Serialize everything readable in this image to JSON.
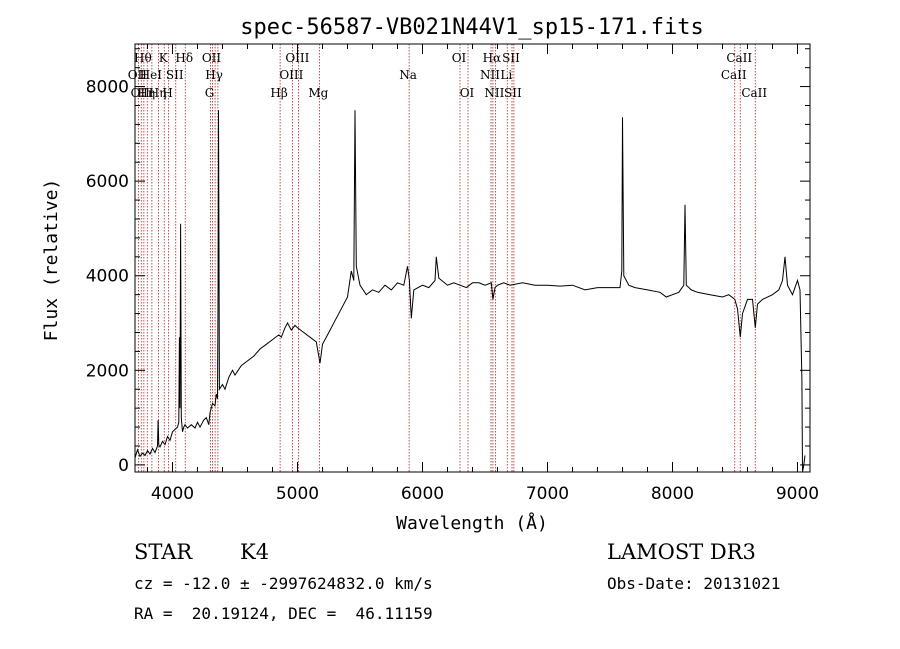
{
  "chart_data": {
    "type": "line",
    "title": "spec-56587-VB021N44V1_sp15-171.fits",
    "xlabel": "Wavelength (Å)",
    "ylabel": "Flux (relative)",
    "xlim": [
      3700,
      9100
    ],
    "ylim": [
      -150,
      8900
    ],
    "x_ticks": [
      4000,
      5000,
      6000,
      7000,
      8000,
      9000
    ],
    "y_ticks": [
      0,
      2000,
      4000,
      6000,
      8000
    ],
    "series": [
      {
        "name": "flux",
        "color": "#000000",
        "points": [
          [
            3700,
            150
          ],
          [
            3720,
            320
          ],
          [
            3740,
            180
          ],
          [
            3760,
            250
          ],
          [
            3780,
            200
          ],
          [
            3800,
            300
          ],
          [
            3820,
            230
          ],
          [
            3840,
            350
          ],
          [
            3860,
            260
          ],
          [
            3880,
            400
          ],
          [
            3885,
            950
          ],
          [
            3890,
            420
          ],
          [
            3900,
            380
          ],
          [
            3920,
            500
          ],
          [
            3940,
            430
          ],
          [
            3960,
            600
          ],
          [
            3980,
            520
          ],
          [
            4000,
            700
          ],
          [
            4020,
            750
          ],
          [
            4040,
            800
          ],
          [
            4050,
            900
          ],
          [
            4055,
            2700
          ],
          [
            4060,
            1200
          ],
          [
            4065,
            5100
          ],
          [
            4070,
            1000
          ],
          [
            4080,
            700
          ],
          [
            4090,
            800
          ],
          [
            4100,
            850
          ],
          [
            4120,
            780
          ],
          [
            4150,
            850
          ],
          [
            4180,
            780
          ],
          [
            4200,
            900
          ],
          [
            4220,
            800
          ],
          [
            4250,
            950
          ],
          [
            4270,
            1000
          ],
          [
            4290,
            850
          ],
          [
            4300,
            1100
          ],
          [
            4320,
            1300
          ],
          [
            4340,
            1250
          ],
          [
            4350,
            1500
          ],
          [
            4360,
            1400
          ],
          [
            4365,
            3800
          ],
          [
            4368,
            7500
          ],
          [
            4372,
            4500
          ],
          [
            4375,
            1600
          ],
          [
            4400,
            1700
          ],
          [
            4420,
            1600
          ],
          [
            4450,
            1850
          ],
          [
            4480,
            2000
          ],
          [
            4500,
            1900
          ],
          [
            4550,
            2100
          ],
          [
            4600,
            2200
          ],
          [
            4650,
            2300
          ],
          [
            4700,
            2450
          ],
          [
            4750,
            2550
          ],
          [
            4800,
            2650
          ],
          [
            4850,
            2750
          ],
          [
            4870,
            2700
          ],
          [
            4900,
            2900
          ],
          [
            4920,
            3000
          ],
          [
            4950,
            2850
          ],
          [
            4980,
            2950
          ],
          [
            5000,
            2900
          ],
          [
            5050,
            2800
          ],
          [
            5100,
            2700
          ],
          [
            5150,
            2600
          ],
          [
            5180,
            2150
          ],
          [
            5200,
            2550
          ],
          [
            5250,
            2800
          ],
          [
            5300,
            3050
          ],
          [
            5350,
            3300
          ],
          [
            5400,
            3550
          ],
          [
            5430,
            4100
          ],
          [
            5450,
            3900
          ],
          [
            5460,
            7500
          ],
          [
            5470,
            4200
          ],
          [
            5500,
            3800
          ],
          [
            5550,
            3600
          ],
          [
            5600,
            3700
          ],
          [
            5650,
            3650
          ],
          [
            5700,
            3800
          ],
          [
            5750,
            3700
          ],
          [
            5800,
            3850
          ],
          [
            5850,
            3800
          ],
          [
            5880,
            4200
          ],
          [
            5895,
            3900
          ],
          [
            5910,
            3100
          ],
          [
            5930,
            3700
          ],
          [
            6000,
            3800
          ],
          [
            6050,
            3750
          ],
          [
            6100,
            3900
          ],
          [
            6110,
            4400
          ],
          [
            6130,
            3950
          ],
          [
            6200,
            3800
          ],
          [
            6250,
            3850
          ],
          [
            6300,
            3800
          ],
          [
            6350,
            3750
          ],
          [
            6400,
            3850
          ],
          [
            6450,
            3850
          ],
          [
            6500,
            3800
          ],
          [
            6550,
            3850
          ],
          [
            6563,
            3500
          ],
          [
            6580,
            3750
          ],
          [
            6600,
            3800
          ],
          [
            6650,
            3850
          ],
          [
            6700,
            3800
          ],
          [
            6800,
            3850
          ],
          [
            6900,
            3800
          ],
          [
            7000,
            3800
          ],
          [
            7100,
            3780
          ],
          [
            7200,
            3800
          ],
          [
            7300,
            3700
          ],
          [
            7400,
            3750
          ],
          [
            7500,
            3750
          ],
          [
            7580,
            3750
          ],
          [
            7594,
            4100
          ],
          [
            7600,
            7350
          ],
          [
            7610,
            4000
          ],
          [
            7650,
            3800
          ],
          [
            7700,
            3750
          ],
          [
            7800,
            3700
          ],
          [
            7900,
            3650
          ],
          [
            7950,
            3550
          ],
          [
            8000,
            3600
          ],
          [
            8050,
            3650
          ],
          [
            8090,
            3800
          ],
          [
            8100,
            5500
          ],
          [
            8110,
            3800
          ],
          [
            8150,
            3700
          ],
          [
            8200,
            3650
          ],
          [
            8300,
            3600
          ],
          [
            8400,
            3550
          ],
          [
            8450,
            3600
          ],
          [
            8498,
            3500
          ],
          [
            8520,
            3300
          ],
          [
            8542,
            2700
          ],
          [
            8560,
            3200
          ],
          [
            8600,
            3500
          ],
          [
            8640,
            3500
          ],
          [
            8662,
            2900
          ],
          [
            8680,
            3400
          ],
          [
            8720,
            3500
          ],
          [
            8800,
            3600
          ],
          [
            8850,
            3700
          ],
          [
            8880,
            3900
          ],
          [
            8900,
            4400
          ],
          [
            8920,
            3800
          ],
          [
            8960,
            3600
          ],
          [
            9000,
            3900
          ],
          [
            9020,
            3700
          ],
          [
            9035,
            1800
          ],
          [
            9040,
            -200
          ],
          [
            9050,
            0
          ],
          [
            9060,
            200
          ]
        ]
      }
    ],
    "line_markers": [
      {
        "wl": 3727,
        "label": "OII",
        "row": 2
      },
      {
        "wl": 3750,
        "label": "OII",
        "row": 3
      },
      {
        "wl": 3771,
        "label": "Hθ",
        "row": 1
      },
      {
        "wl": 3798,
        "label": "Hη",
        "row": 3
      },
      {
        "wl": 3835,
        "label": "HeI",
        "row": 2
      },
      {
        "wl": 3889,
        "label": "Hη",
        "row": 3
      },
      {
        "wl": 3934,
        "label": "K",
        "row": 1
      },
      {
        "wl": 3969,
        "label": "H",
        "row": 3
      },
      {
        "wl": 4026,
        "label": "SII",
        "row": 2
      },
      {
        "wl": 4102,
        "label": "Hδ",
        "row": 1
      },
      {
        "wl": 4304,
        "label": "G",
        "row": 3
      },
      {
        "wl": 4320,
        "label": "OII",
        "row": 1
      },
      {
        "wl": 4341,
        "label": "Hγ",
        "row": 2
      },
      {
        "wl": 4363,
        "label": "",
        "row": 0
      },
      {
        "wl": 4861,
        "label": "Hβ",
        "row": 3
      },
      {
        "wl": 4959,
        "label": "OIII",
        "row": 2
      },
      {
        "wl": 5007,
        "label": "OIII",
        "row": 1
      },
      {
        "wl": 5175,
        "label": "Mg",
        "row": 3
      },
      {
        "wl": 5893,
        "label": "Na",
        "row": 2
      },
      {
        "wl": 6300,
        "label": "OI",
        "row": 1
      },
      {
        "wl": 6364,
        "label": "OI",
        "row": 3
      },
      {
        "wl": 6548,
        "label": "NII",
        "row": 2
      },
      {
        "wl": 6563,
        "label": "Hα",
        "row": 1
      },
      {
        "wl": 6583,
        "label": "NII",
        "row": 3
      },
      {
        "wl": 6678,
        "label": "Li",
        "row": 2
      },
      {
        "wl": 6716,
        "label": "SII",
        "row": 1
      },
      {
        "wl": 6731,
        "label": "SII",
        "row": 3
      },
      {
        "wl": 8498,
        "label": "CaII",
        "row": 2
      },
      {
        "wl": 8542,
        "label": "CaII",
        "row": 1
      },
      {
        "wl": 8662,
        "label": "CaII",
        "row": 3
      }
    ]
  },
  "info": {
    "object_class": "STAR",
    "subclass": "K4",
    "survey": "LAMOST DR3",
    "redshift": "cz = -12.0 ± -2997624832.0 km/s",
    "obs_date": "Obs-Date: 20131021",
    "coords": "RA =  20.19124, DEC =  46.11159"
  },
  "colors": {
    "spectrum": "#000000",
    "marker": "#b02020",
    "axis": "#000000"
  }
}
